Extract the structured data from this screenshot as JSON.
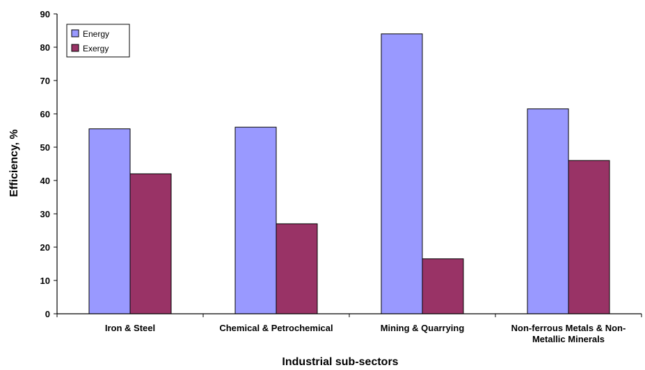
{
  "chart_data": {
    "type": "bar",
    "title": "",
    "xlabel": "Industrial sub-sectors",
    "ylabel": "Efficiency, %",
    "ylim": [
      0,
      90
    ],
    "yticks": [
      0,
      10,
      20,
      30,
      40,
      50,
      60,
      70,
      80,
      90
    ],
    "grid": false,
    "legend_position": "top-left",
    "categories": [
      [
        "Iron & Steel"
      ],
      [
        "Chemical & Petrochemical"
      ],
      [
        "Mining & Quarrying"
      ],
      [
        "Non-ferrous Metals & Non-",
        "Metallic Minerals"
      ]
    ],
    "series": [
      {
        "name": "Energy",
        "color": "#9999ff",
        "values": [
          55.5,
          56,
          84,
          61.5
        ]
      },
      {
        "name": "Exergy",
        "color": "#993366",
        "values": [
          42,
          27,
          16.5,
          46
        ]
      }
    ]
  }
}
